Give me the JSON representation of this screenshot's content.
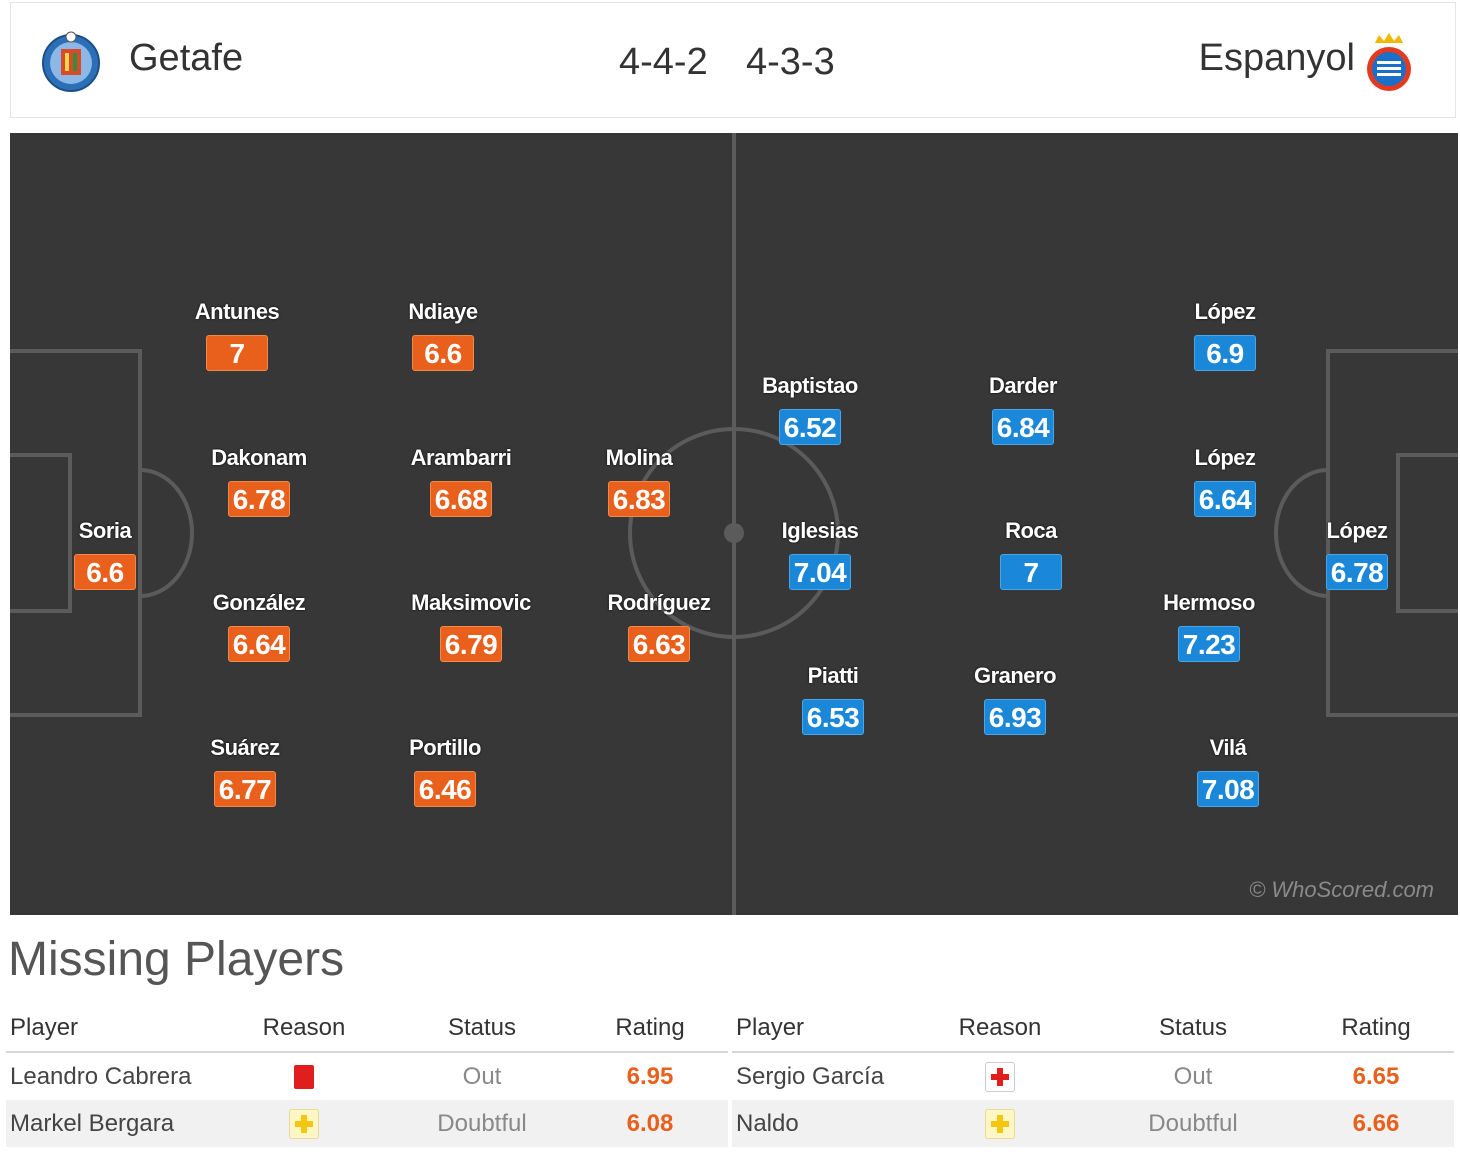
{
  "header": {
    "home_team": "Getafe",
    "away_team": "Espanyol",
    "home_formation": "4-4-2",
    "away_formation": "4-3-3"
  },
  "colors": {
    "pitch": "#373737",
    "home_rating": "#e8601b",
    "away_rating": "#1a87d8",
    "red_card": "#e01e1e",
    "doubtful": "#f4c60c"
  },
  "pitch": {
    "watermark": "© WhoScored.com",
    "home_players": [
      {
        "name": "Soria",
        "rating": "6.6"
      },
      {
        "name": "Antunes",
        "rating": "7"
      },
      {
        "name": "Dakonam",
        "rating": "6.78"
      },
      {
        "name": "González",
        "rating": "6.64"
      },
      {
        "name": "Suárez",
        "rating": "6.77"
      },
      {
        "name": "Ndiaye",
        "rating": "6.6"
      },
      {
        "name": "Arambarri",
        "rating": "6.68"
      },
      {
        "name": "Maksimovic",
        "rating": "6.79"
      },
      {
        "name": "Portillo",
        "rating": "6.46"
      },
      {
        "name": "Molina",
        "rating": "6.83"
      },
      {
        "name": "Rodríguez",
        "rating": "6.63"
      }
    ],
    "away_players": [
      {
        "name": "López",
        "rating": "6.78"
      },
      {
        "name": "López",
        "rating": "6.9"
      },
      {
        "name": "López",
        "rating": "6.64"
      },
      {
        "name": "Hermoso",
        "rating": "7.23"
      },
      {
        "name": "Vilá",
        "rating": "7.08"
      },
      {
        "name": "Darder",
        "rating": "6.84"
      },
      {
        "name": "Roca",
        "rating": "7"
      },
      {
        "name": "Granero",
        "rating": "6.93"
      },
      {
        "name": "Baptistao",
        "rating": "6.52"
      },
      {
        "name": "Iglesias",
        "rating": "7.04"
      },
      {
        "name": "Piatti",
        "rating": "6.53"
      }
    ]
  },
  "missing": {
    "title": "Missing Players",
    "columns": [
      "Player",
      "Reason",
      "Status",
      "Rating"
    ],
    "home": [
      {
        "player": "Leandro Cabrera",
        "reason_icon": "red-card-icon",
        "status": "Out",
        "rating": "6.95"
      },
      {
        "player": "Markel Bergara",
        "reason_icon": "doubtful-icon",
        "status": "Doubtful",
        "rating": "6.08"
      }
    ],
    "away": [
      {
        "player": "Sergio García",
        "reason_icon": "injury-icon",
        "status": "Out",
        "rating": "6.65"
      },
      {
        "player": "Naldo",
        "reason_icon": "doubtful-icon",
        "status": "Doubtful",
        "rating": "6.66"
      }
    ]
  }
}
